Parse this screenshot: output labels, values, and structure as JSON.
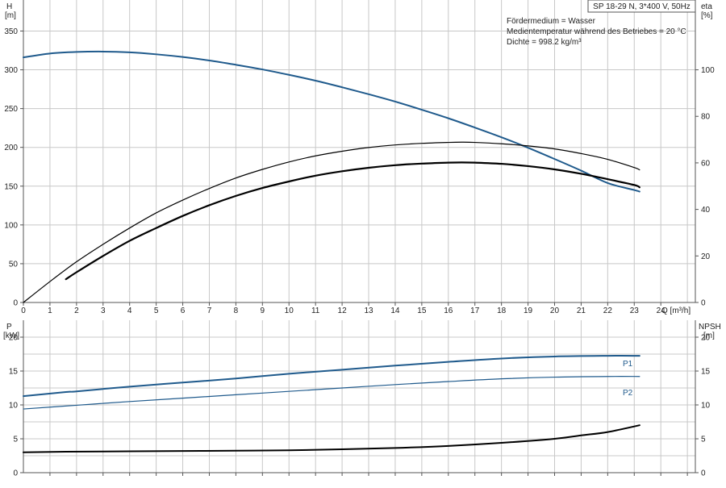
{
  "title": "SP 18-29 N, 3*400 V, 50Hz",
  "info_lines": [
    "Fördermedium = Wasser",
    "Medientemperatur während des Betriebes = 20 °C",
    "Dichte = 998.2 kg/m³"
  ],
  "colors": {
    "blue": "#1f5a8c",
    "black": "#000000",
    "grid": "#c8c8c8"
  },
  "chart_data": [
    {
      "type": "line",
      "name": "head-efficiency",
      "xlabel": "Q [m³/h]",
      "x_unit_label": "Q [m³/h]",
      "xlim": [
        0,
        25.3
      ],
      "x_ticks": [
        0,
        1,
        2,
        3,
        4,
        5,
        6,
        7,
        8,
        9,
        10,
        11,
        12,
        13,
        14,
        15,
        16,
        17,
        18,
        19,
        20,
        21,
        22,
        23,
        24
      ],
      "left_axis": {
        "label": "H",
        "unit": "[m]",
        "ylim": [
          0,
          390
        ],
        "ticks": [
          0,
          50,
          100,
          150,
          200,
          250,
          300,
          350
        ]
      },
      "right_axis": {
        "label": "eta",
        "unit": "[%]",
        "ylim": [
          0,
          130
        ],
        "ticks": [
          0,
          20,
          40,
          60,
          80,
          100
        ]
      },
      "grid": true,
      "series": [
        {
          "key": "H",
          "axis": "left",
          "color": "#1f5a8c",
          "width": 2,
          "x": [
            0,
            1,
            2,
            3,
            4,
            5,
            6,
            7,
            8,
            9,
            10,
            11,
            12,
            13,
            14,
            15,
            16,
            17,
            18,
            19,
            20,
            21,
            22,
            23,
            23.2
          ],
          "y": [
            316,
            321,
            323,
            323.5,
            322.5,
            320,
            316.5,
            312,
            306.5,
            300.5,
            293.5,
            286,
            277.5,
            268.5,
            259,
            248.5,
            237.5,
            225.5,
            213,
            199.5,
            185,
            170,
            154,
            145,
            143
          ]
        },
        {
          "key": "eta",
          "axis": "right",
          "color": "#000000",
          "width": 1.2,
          "x": [
            0,
            1,
            2,
            3,
            4,
            5,
            6,
            7,
            8,
            9,
            10,
            11,
            12,
            13,
            14,
            15,
            16,
            16.5,
            17,
            18,
            19,
            20,
            21,
            22,
            23,
            23.2
          ],
          "y": [
            0,
            9,
            17.5,
            25,
            32,
            38.5,
            44,
            49,
            53.5,
            57.2,
            60.4,
            63.0,
            65.0,
            66.6,
            67.7,
            68.4,
            68.8,
            68.9,
            68.8,
            68.2,
            67.3,
            66.0,
            64.0,
            61.5,
            58,
            57
          ]
        },
        {
          "key": "eta_unit",
          "axis": "right",
          "color": "#000000",
          "width": 2.2,
          "x": [
            1.6,
            2,
            3,
            4,
            5,
            6,
            7,
            8,
            9,
            10,
            11,
            12,
            13,
            14,
            15,
            16,
            16.5,
            17,
            18,
            19,
            20,
            21,
            22,
            23,
            23.2
          ],
          "y": [
            10,
            13,
            20,
            26.5,
            32,
            37.2,
            41.8,
            45.8,
            49.2,
            52.0,
            54.5,
            56.4,
            57.9,
            59.0,
            59.7,
            60.1,
            60.2,
            60.1,
            59.6,
            58.6,
            57.2,
            55.3,
            53,
            50.5,
            49.5
          ]
        }
      ]
    },
    {
      "type": "line",
      "name": "power-npsh",
      "xlim": [
        0,
        25.3
      ],
      "left_axis": {
        "label": "P",
        "unit": "[kW]",
        "ylim": [
          0,
          22.5
        ],
        "ticks": [
          0,
          5,
          10,
          15,
          20
        ]
      },
      "right_axis": {
        "label": "NPSH",
        "unit": "[m]",
        "ylim": [
          0,
          22.5
        ],
        "ticks": [
          0,
          5,
          10,
          15,
          20
        ]
      },
      "grid": true,
      "series": [
        {
          "key": "P1",
          "name": "P1",
          "axis": "left",
          "color": "#1f5a8c",
          "width": 2,
          "x": [
            0,
            1.6,
            2,
            4,
            6,
            8,
            10,
            12,
            14,
            16,
            18,
            20,
            22,
            23.2
          ],
          "y": [
            11.3,
            11.9,
            12.0,
            12.7,
            13.3,
            13.9,
            14.6,
            15.2,
            15.8,
            16.35,
            16.85,
            17.15,
            17.25,
            17.25
          ]
        },
        {
          "key": "P2",
          "name": "P2",
          "axis": "left",
          "color": "#1f5a8c",
          "width": 1.2,
          "x": [
            0,
            2,
            4,
            6,
            8,
            10,
            12,
            14,
            16,
            18,
            20,
            22,
            23.2
          ],
          "y": [
            9.4,
            9.95,
            10.5,
            11.0,
            11.5,
            12.0,
            12.5,
            13.0,
            13.45,
            13.85,
            14.1,
            14.2,
            14.2
          ]
        },
        {
          "key": "NPSH",
          "axis": "right",
          "color": "#000000",
          "width": 2,
          "x": [
            0,
            1.6,
            4,
            6,
            8,
            10,
            12,
            14,
            16,
            18,
            20,
            21,
            22,
            23.2
          ],
          "y": [
            3.0,
            3.1,
            3.15,
            3.2,
            3.25,
            3.3,
            3.45,
            3.65,
            3.95,
            4.4,
            5.0,
            5.5,
            6.0,
            7.0
          ]
        }
      ]
    }
  ]
}
